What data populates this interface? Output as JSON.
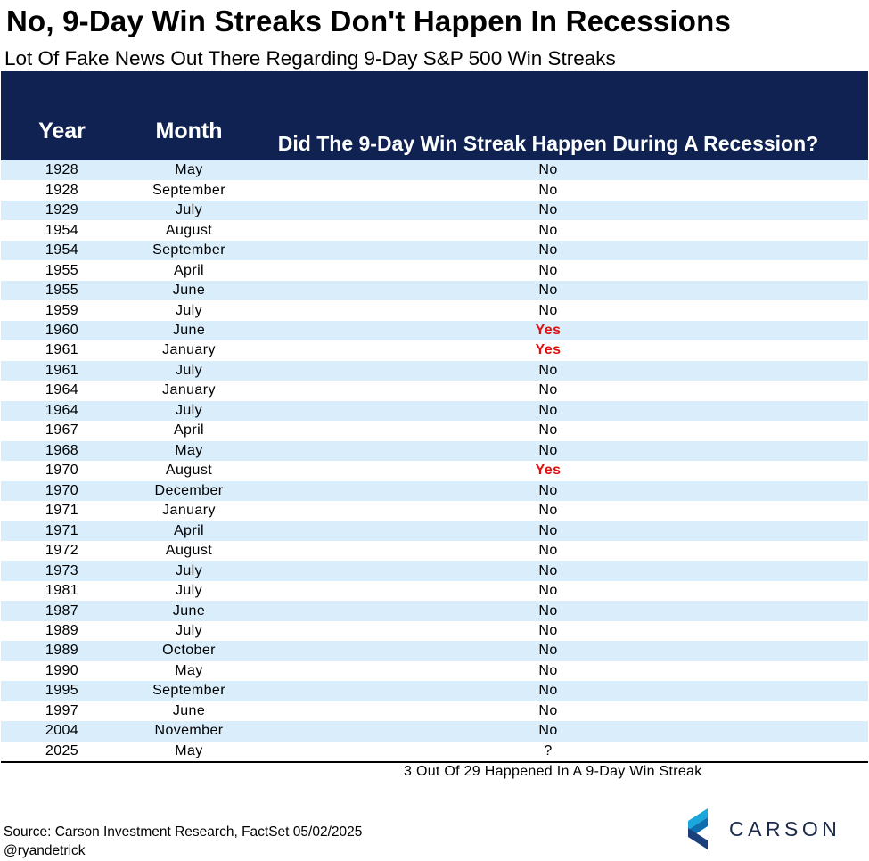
{
  "title": "No, 9-Day Win Streaks Don't Happen In Recessions",
  "subtitle": "Lot Of Fake News Out There Regarding 9-Day S&P 500 Win Streaks",
  "chart_data": {
    "type": "table",
    "columns": [
      "Year",
      "Month",
      "Did The 9-Day Win Streak Happen During A Recession?"
    ],
    "rows": [
      [
        "1928",
        "May",
        "No"
      ],
      [
        "1928",
        "September",
        "No"
      ],
      [
        "1929",
        "July",
        "No"
      ],
      [
        "1954",
        "August",
        "No"
      ],
      [
        "1954",
        "September",
        "No"
      ],
      [
        "1955",
        "April",
        "No"
      ],
      [
        "1955",
        "June",
        "No"
      ],
      [
        "1959",
        "July",
        "No"
      ],
      [
        "1960",
        "June",
        "Yes"
      ],
      [
        "1961",
        "January",
        "Yes"
      ],
      [
        "1961",
        "July",
        "No"
      ],
      [
        "1964",
        "January",
        "No"
      ],
      [
        "1964",
        "July",
        "No"
      ],
      [
        "1967",
        "April",
        "No"
      ],
      [
        "1968",
        "May",
        "No"
      ],
      [
        "1970",
        "August",
        "Yes"
      ],
      [
        "1970",
        "December",
        "No"
      ],
      [
        "1971",
        "January",
        "No"
      ],
      [
        "1971",
        "April",
        "No"
      ],
      [
        "1972",
        "August",
        "No"
      ],
      [
        "1973",
        "July",
        "No"
      ],
      [
        "1981",
        "July",
        "No"
      ],
      [
        "1987",
        "June",
        "No"
      ],
      [
        "1989",
        "July",
        "No"
      ],
      [
        "1989",
        "October",
        "No"
      ],
      [
        "1990",
        "May",
        "No"
      ],
      [
        "1995",
        "September",
        "No"
      ],
      [
        "1997",
        "June",
        "No"
      ],
      [
        "2004",
        "November",
        "No"
      ],
      [
        "2025",
        "May",
        "?"
      ]
    ],
    "summary": "3 Out Of 29 Happened In A 9-Day Win Streak"
  },
  "colors": {
    "header_bg": "#0f2251",
    "row_alt": "#d9edfb",
    "yes": "#e01010"
  },
  "footer": {
    "source": "Source: Carson Investment Research, FactSet 05/02/2025",
    "handle": "@ryandetrick"
  },
  "logo": {
    "text": "CARSON",
    "icon": "carson-chevron-logo-icon"
  }
}
